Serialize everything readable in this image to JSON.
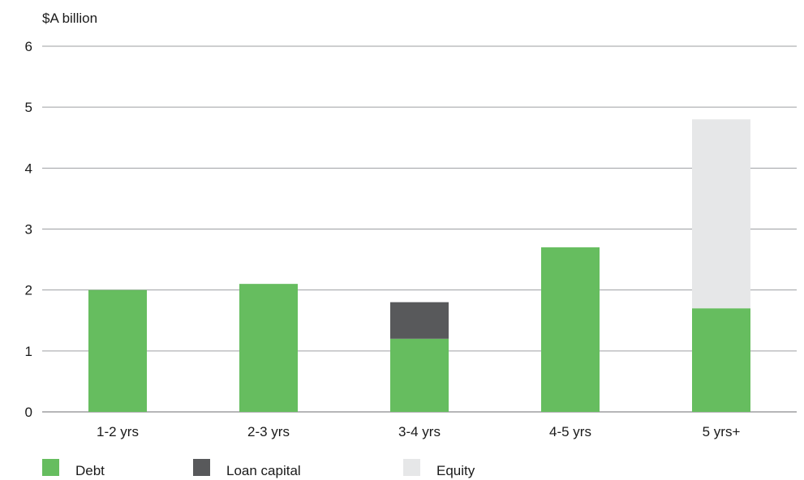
{
  "chart_data": {
    "type": "bar",
    "stacked": true,
    "ylabel": "$A billion",
    "ylim": [
      0,
      6
    ],
    "yticks": [
      0,
      1,
      2,
      3,
      4,
      5,
      6
    ],
    "grid": true,
    "legend_position": "bottom-left",
    "categories": [
      "1-2 yrs",
      "2-3 yrs",
      "3-4 yrs",
      "4-5 yrs",
      "5 yrs+"
    ],
    "series": [
      {
        "name": "Debt",
        "color": "#66bd5f",
        "values": [
          2.0,
          2.1,
          1.2,
          2.7,
          1.7
        ]
      },
      {
        "name": "Loan capital",
        "color": "#58595b",
        "values": [
          0,
          0,
          0.6,
          0,
          0
        ]
      },
      {
        "name": "Equity",
        "color": "#e6e7e8",
        "values": [
          0,
          0,
          0,
          0,
          3.1
        ]
      }
    ]
  }
}
